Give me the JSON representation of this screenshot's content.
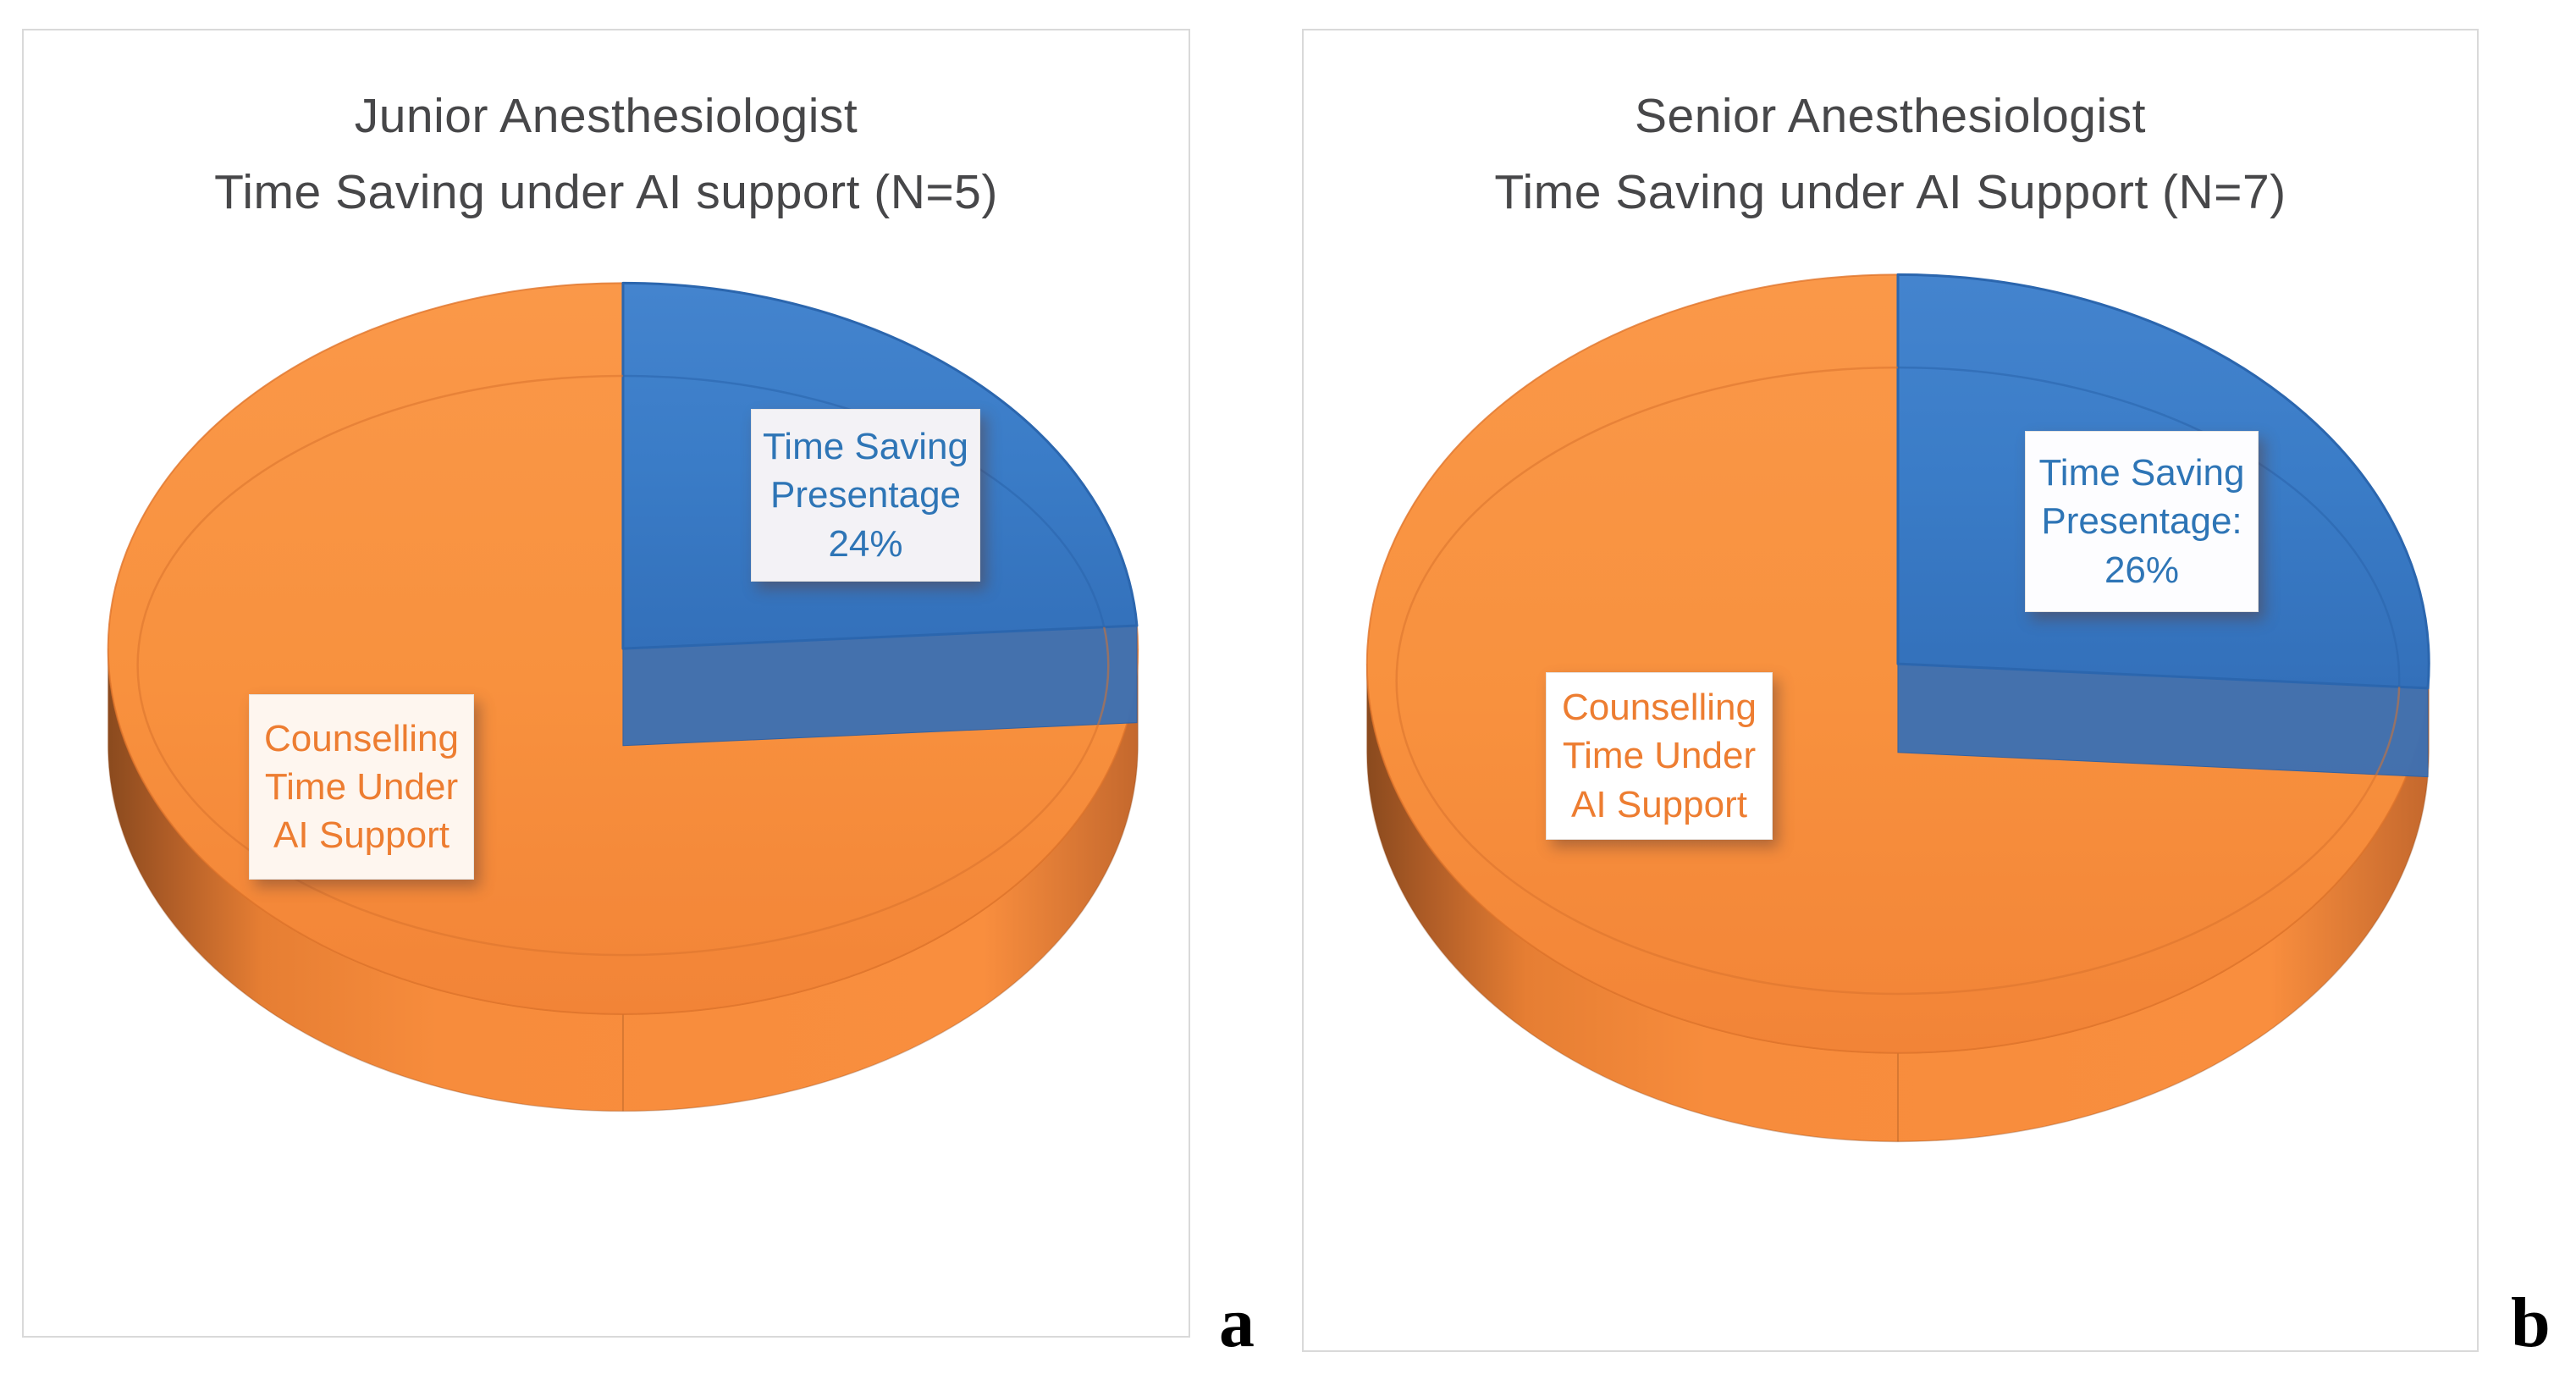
{
  "page": {
    "background": "#FFFFFF",
    "panel_border_color": "#D9D9D9",
    "title_color": "#474749"
  },
  "panels": {
    "a": {
      "marker": "a",
      "title_line1": "Junior Anesthesiologist",
      "title_line2": "Time Saving under AI support (N=5)"
    },
    "b": {
      "marker": "b",
      "title_line1": "Senior Anesthesiologist",
      "title_line2": "Time Saving under AI Support (N=7)"
    }
  },
  "chart_data": [
    {
      "type": "pie",
      "style": "3d",
      "panel": "a",
      "title": "Junior Anesthesiologist\nTime Saving under AI support (N=5)",
      "legend_position": "none",
      "start_angle_deg": 0,
      "direction": "clockwise",
      "slices": [
        {
          "name": "Time Saving Presentage",
          "value_pct": 24,
          "color": "#3A7CC7",
          "side_color": "#3E70B1",
          "edge_color": "#2B66AE",
          "data_label": "Time Saving\nPresentage\n24%",
          "label_text_color": "#2E75B6",
          "label_bg": "#F3F2F6"
        },
        {
          "name": "Counselling Time Under AI Support",
          "value_pct": 76,
          "color": "#F8913E",
          "side_color": "#E67E33",
          "edge_color": "#E0742A",
          "data_label": "Counselling\nTime Under\nAI Support",
          "label_text_color": "#ED7D31",
          "label_bg": "#FEF6EF"
        }
      ]
    },
    {
      "type": "pie",
      "style": "3d",
      "panel": "b",
      "title": "Senior Anesthesiologist\nTime Saving under AI Support (N=7)",
      "legend_position": "none",
      "start_angle_deg": 0,
      "direction": "clockwise",
      "slices": [
        {
          "name": "Time Saving Presentage",
          "value_pct": 26,
          "color": "#3A7CC7",
          "side_color": "#3E70B1",
          "edge_color": "#2B66AE",
          "data_label": "Time Saving\nPresentage:\n26%",
          "label_text_color": "#2E75B6",
          "label_bg": "#FDFDFF"
        },
        {
          "name": "Counselling Time Under AI Support",
          "value_pct": 74,
          "color": "#F8913E",
          "side_color": "#E67E33",
          "edge_color": "#E0742A",
          "data_label": "Counselling\nTime Under\nAI Support",
          "label_text_color": "#ED7D31",
          "label_bg": "#FFFFFF"
        }
      ]
    }
  ]
}
